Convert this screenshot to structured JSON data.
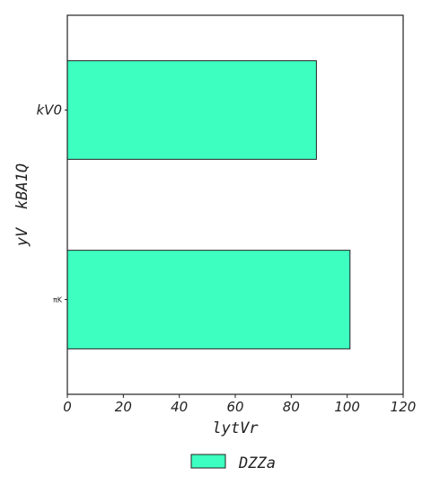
{
  "chart_data": {
    "type": "bar",
    "orientation": "horizontal",
    "categories": [
      "kV0",
      "πK"
    ],
    "series": [
      {
        "name": "DZZa",
        "values": [
          89,
          101
        ],
        "color": "#3dffc0"
      }
    ],
    "xlabel": "lytVr",
    "ylabel": "yV  kBA1Q",
    "xlim": [
      0,
      120
    ],
    "xticks": [
      "0",
      "20",
      "40",
      "60",
      "80",
      "100",
      "120"
    ],
    "grid": false,
    "legend": "bottom-center"
  }
}
